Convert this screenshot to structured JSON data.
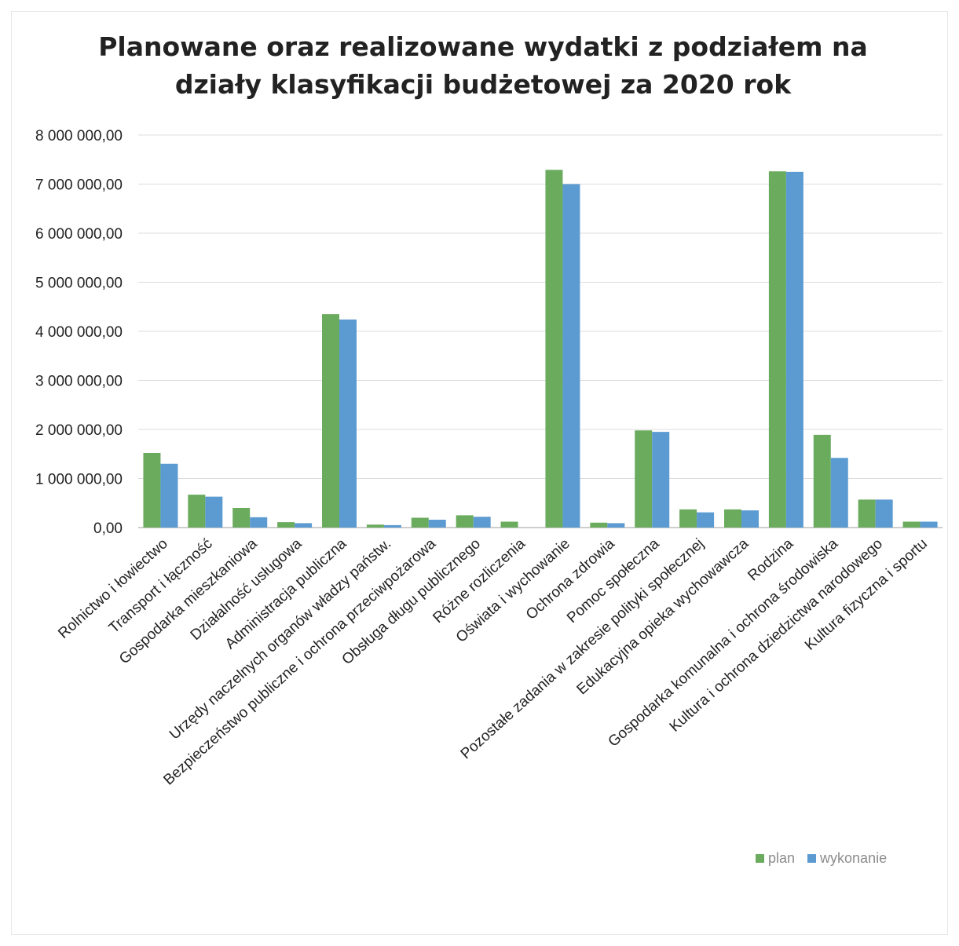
{
  "chart_data": {
    "type": "bar",
    "title_lines": [
      "Planowane oraz realizowane wydatki z podziałem na",
      "działy klasyfikacji budżetowej za 2020 rok"
    ],
    "categories": [
      "Rolnictwo i łowiectwo",
      "Transport i łączność",
      "Gospodarka mieszkaniowa",
      "Działalność usługowa",
      "Administracja publiczna",
      "Urzędy naczelnych organów władzy państw.",
      "Bezpieczeństwo publiczne i ochrona przeciwpożarowa",
      "Obsługa długu publicznego",
      "Różne rozliczenia",
      "Oświata i wychowanie",
      "Ochrona zdrowia",
      "Pomoc społeczna",
      "Pozostałe zadania w zakresie polityki społecznej",
      "Edukacyjna opieka wychowawcza",
      "Rodzina",
      "Gospodarka komunalna i ochrona środowiska",
      "Kultura i ochrona dziedzictwa narodowego",
      "Kultura fizyczna i sportu"
    ],
    "series": [
      {
        "name": "plan",
        "color": "#6aab5e",
        "values": [
          1520000,
          670000,
          400000,
          110000,
          4350000,
          60000,
          200000,
          250000,
          120000,
          7290000,
          100000,
          1980000,
          370000,
          370000,
          7260000,
          1890000,
          570000,
          120000
        ]
      },
      {
        "name": "wykonanie",
        "color": "#5c9bd1",
        "values": [
          1300000,
          630000,
          210000,
          90000,
          4240000,
          50000,
          160000,
          220000,
          0,
          7000000,
          90000,
          1950000,
          310000,
          350000,
          7250000,
          1420000,
          570000,
          120000
        ]
      }
    ],
    "yticks": [
      "0,00",
      "1 000 000,00",
      "2 000 000,00",
      "3 000 000,00",
      "4 000 000,00",
      "5 000 000,00",
      "6 000 000,00",
      "7 000 000,00",
      "8 000 000,00"
    ],
    "ylim": [
      0,
      8000000
    ],
    "grid": true,
    "legend_position": "bottom-right",
    "xlabel": "",
    "ylabel": ""
  }
}
